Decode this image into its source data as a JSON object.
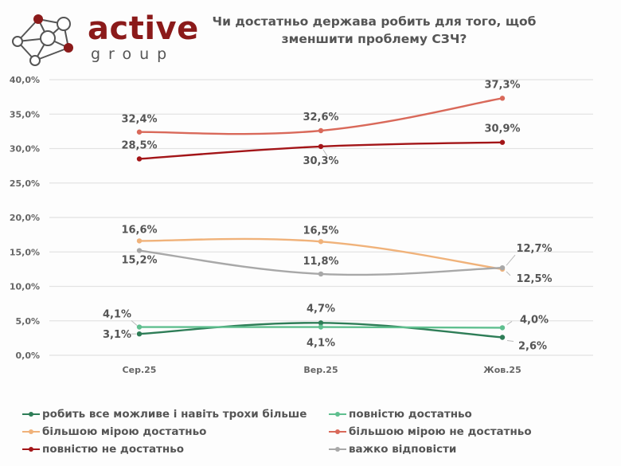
{
  "logo": {
    "brand": "active",
    "sub": "group",
    "colors": {
      "brand": "#8b1a1a",
      "node_fill": "#8b1a1a"
    }
  },
  "chart_data": {
    "type": "line",
    "title": "Чи достатньо держава робить для того, щоб зменшити проблему СЗЧ?",
    "categories": [
      "Сер.25",
      "Вер.25",
      "Жов.25"
    ],
    "ylim": [
      0,
      40
    ],
    "yticks": [
      "0,0%",
      "5,0%",
      "10,0%",
      "15,0%",
      "20,0%",
      "25,0%",
      "30,0%",
      "35,0%",
      "40,0%"
    ],
    "grid": true,
    "legend_position": "bottom",
    "series": [
      {
        "name": "робить все можливе і навіть  трохи більше",
        "color": "#2e7d57",
        "values": [
          3.1,
          4.7,
          2.6
        ],
        "labels": [
          "3,1%",
          "4,7%",
          "2,6%"
        ]
      },
      {
        "name": "повністю достатньо",
        "color": "#5fbf8f",
        "values": [
          4.1,
          4.1,
          4.0
        ],
        "labels": [
          "4,1%",
          "4,1%",
          "4,0%"
        ]
      },
      {
        "name": "більшою мірою достатньо",
        "color": "#f0b27a",
        "values": [
          16.6,
          16.5,
          12.5
        ],
        "labels": [
          "16,6%",
          "16,5%",
          "12,5%"
        ]
      },
      {
        "name": "більшою мірою не достатньо",
        "color": "#d9695a",
        "values": [
          32.4,
          32.6,
          37.3
        ],
        "labels": [
          "32,4%",
          "32,6%",
          "37,3%"
        ]
      },
      {
        "name": "повністю не достатньо",
        "color": "#a31518",
        "values": [
          28.5,
          30.3,
          30.9
        ],
        "labels": [
          "28,5%",
          "30,3%",
          "30,9%"
        ]
      },
      {
        "name": "важко відповісти",
        "color": "#a8a8a8",
        "values": [
          15.2,
          11.8,
          12.7
        ],
        "labels": [
          "15,2%",
          "11,8%",
          "12,7%"
        ]
      }
    ]
  }
}
